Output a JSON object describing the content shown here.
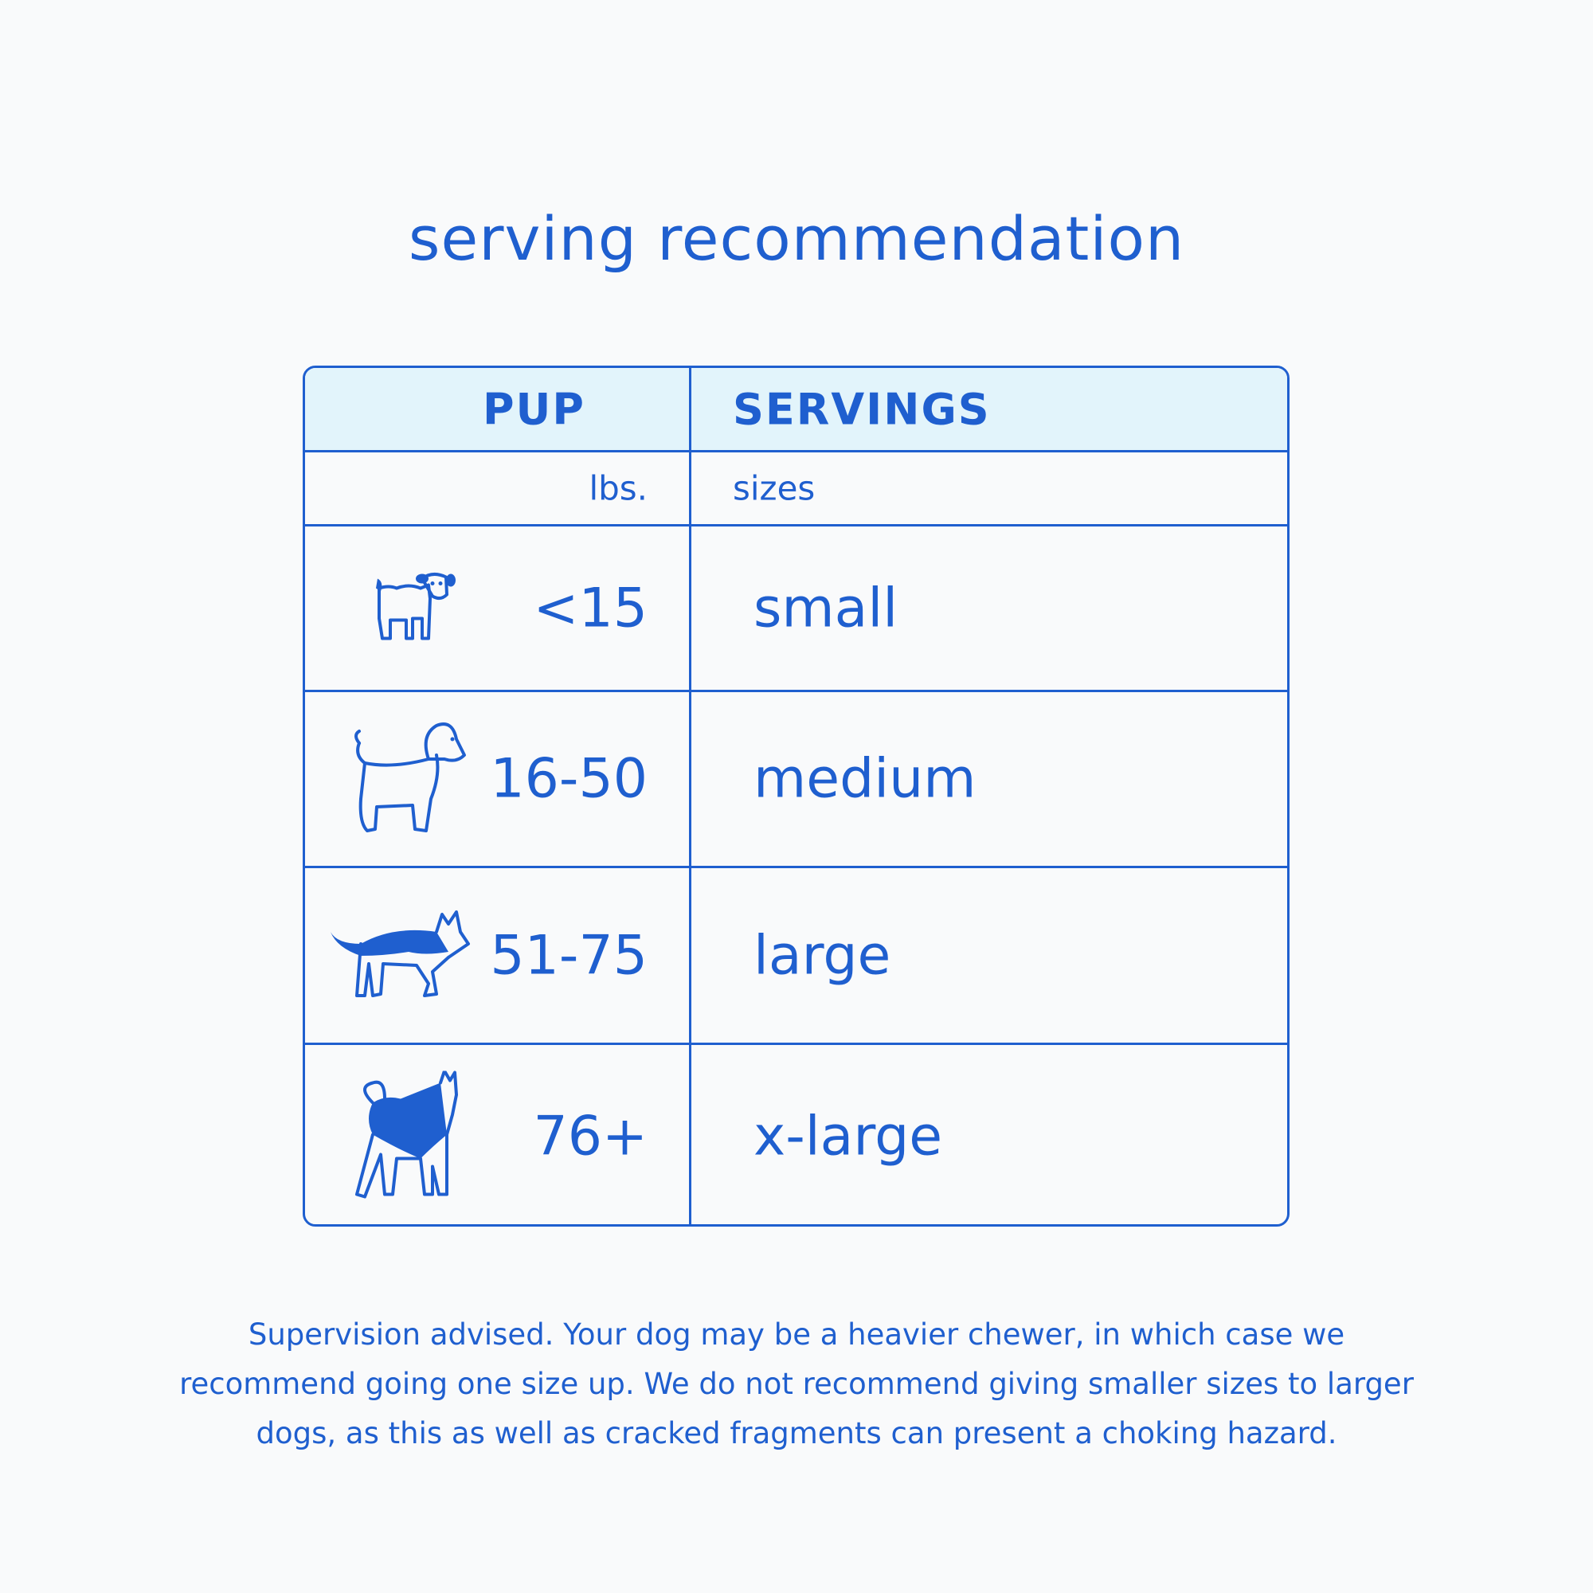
{
  "title": "serving recommendation",
  "table": {
    "headers": {
      "pup": "PUP",
      "servings": "SERVINGS"
    },
    "units": {
      "pup": "lbs.",
      "servings": "sizes"
    },
    "rows": [
      {
        "icon": "small-dog-icon",
        "weight": "<15",
        "size": "small"
      },
      {
        "icon": "poodle-icon",
        "weight": "16-50",
        "size": "medium"
      },
      {
        "icon": "shepherd-dog-icon",
        "weight": "51-75",
        "size": "large"
      },
      {
        "icon": "husky-icon",
        "weight": "76+",
        "size": "x-large"
      }
    ]
  },
  "footnote": "Supervision advised. Your dog may be a heavier chewer, in which case we recommend going one size up. We do not recommend giving smaller sizes to larger dogs, as this as well as cracked fragments can present a choking hazard.",
  "colors": {
    "accent": "#1f5fcf",
    "header_bg": "#e2f4fb",
    "background": "#f9fafb"
  }
}
